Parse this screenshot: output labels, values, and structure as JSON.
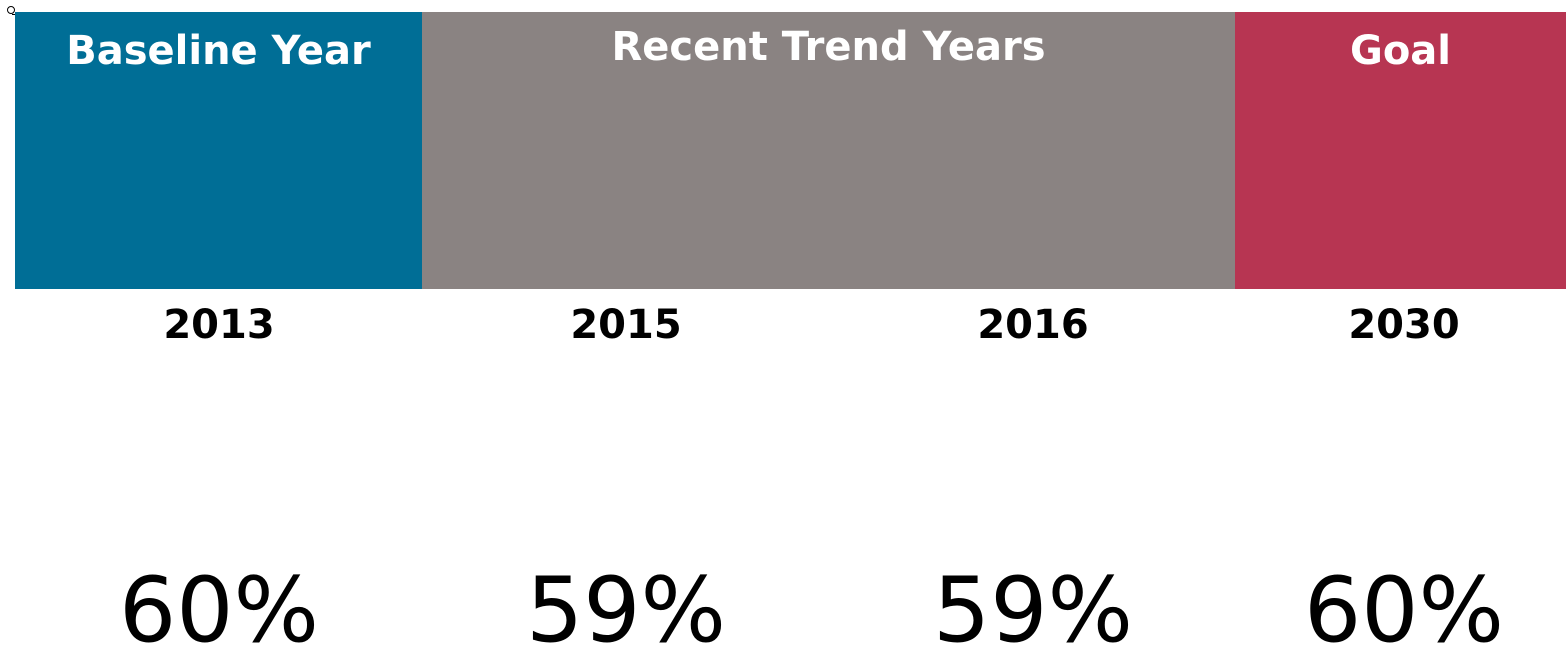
{
  "groups": [
    {
      "label": "Baseline Year"
    },
    {
      "label": "Recent Trend Years"
    },
    {
      "label": "Goal"
    }
  ],
  "columns": [
    {
      "year": "2013",
      "value": "60%"
    },
    {
      "year": "2015",
      "value": "59%"
    },
    {
      "year": "2016",
      "value": "59%"
    },
    {
      "year": "2030",
      "value": "60%"
    }
  ]
}
